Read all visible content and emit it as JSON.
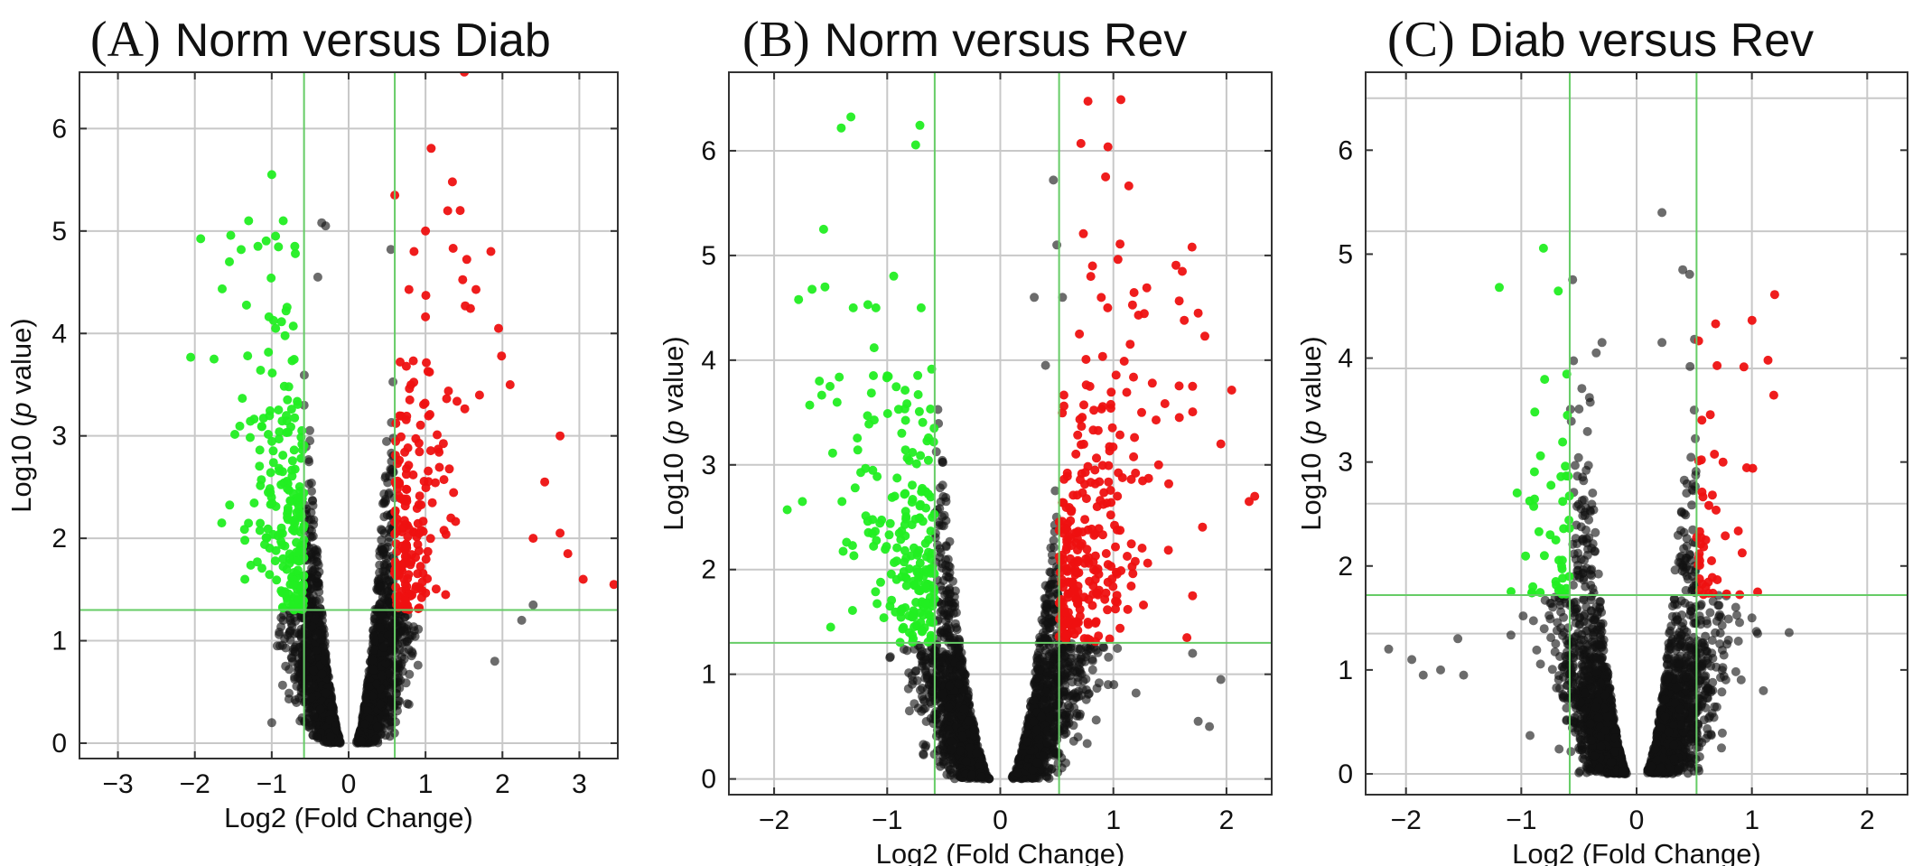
{
  "chart_data": [
    {
      "type": "scatter",
      "panel_letter": "(A)",
      "title": "Norm versus Diab",
      "xlabel": "Log2 (Fold Change)",
      "ylabel_prefix": "Log10 (",
      "ylabel_italic": "p",
      "ylabel_suffix": " value)",
      "xlim": [
        -3.5,
        3.5
      ],
      "ylim": [
        -0.15,
        6.55
      ],
      "xticks": [
        -3,
        -2,
        -1,
        0,
        1,
        2,
        3
      ],
      "yticks": [
        0,
        1,
        2,
        3,
        4,
        5,
        6
      ],
      "extra_hgrid": [],
      "fc_threshold": [
        -0.58,
        0.6
      ],
      "p_threshold": 1.3,
      "grid": true,
      "colors": {
        "up": "#ee1111",
        "down": "#22ee22",
        "ns": "#111111"
      },
      "highlight_points": {
        "down": [
          [
            -1.0,
            5.55
          ],
          [
            -1.3,
            5.1
          ],
          [
            -1.55,
            4.7
          ],
          [
            -1.75,
            3.75
          ],
          [
            -1.65,
            2.15
          ],
          [
            -1.35,
            1.6
          ],
          [
            -0.7,
            4.85
          ],
          [
            -0.85,
            5.1
          ],
          [
            -0.95,
            4.95
          ]
        ],
        "up": [
          [
            1.35,
            5.48
          ],
          [
            0.6,
            5.35
          ],
          [
            1.45,
            5.2
          ],
          [
            1.85,
            4.8
          ],
          [
            1.95,
            4.05
          ],
          [
            2.1,
            3.5
          ],
          [
            2.75,
            3.0
          ],
          [
            2.55,
            2.55
          ],
          [
            2.75,
            2.05
          ],
          [
            3.05,
            1.6
          ],
          [
            3.45,
            1.55
          ],
          [
            1.0,
            5.0
          ],
          [
            0.85,
            4.8
          ],
          [
            2.4,
            2.0
          ],
          [
            2.85,
            1.85
          ]
        ],
        "ns": [
          [
            -0.3,
            5.05
          ],
          [
            -0.35,
            5.08
          ],
          [
            0.55,
            4.82
          ],
          [
            -0.4,
            4.55
          ],
          [
            1.9,
            0.8
          ],
          [
            2.25,
            1.2
          ],
          [
            2.4,
            1.35
          ],
          [
            -1.0,
            0.2
          ],
          [
            -0.4,
            0.05
          ]
        ]
      }
    },
    {
      "type": "scatter",
      "panel_letter": "(B)",
      "title": "Norm versus Rev",
      "xlabel": "Log2 (Fold Change)",
      "ylabel_prefix": "Log10 (",
      "ylabel_italic": "p",
      "ylabel_suffix": " value)",
      "xlim": [
        -2.4,
        2.4
      ],
      "ylim": [
        -0.15,
        6.75
      ],
      "xticks": [
        -2,
        -1,
        0,
        1,
        2
      ],
      "yticks": [
        0,
        1,
        2,
        3,
        4,
        5,
        6
      ],
      "extra_hgrid": [],
      "fc_threshold": [
        -0.58,
        0.52
      ],
      "p_threshold": 1.3,
      "grid": true,
      "colors": {
        "up": "#ee1111",
        "down": "#22ee22",
        "ns": "#111111"
      },
      "highlight_points": {
        "down": [
          [
            -1.55,
            4.7
          ],
          [
            -1.3,
            4.5
          ],
          [
            -1.1,
            4.5
          ],
          [
            -0.7,
            4.5
          ],
          [
            -1.6,
            3.8
          ],
          [
            -1.75,
            2.65
          ],
          [
            -1.4,
            2.65
          ],
          [
            -1.0,
            3.85
          ],
          [
            -1.5,
            1.45
          ]
        ],
        "up": [
          [
            0.8,
            4.8
          ],
          [
            0.95,
            4.5
          ],
          [
            0.7,
            4.25
          ],
          [
            1.75,
            4.45
          ],
          [
            1.7,
            3.75
          ],
          [
            1.95,
            3.2
          ],
          [
            2.2,
            2.65
          ],
          [
            2.25,
            2.7
          ],
          [
            1.7,
            1.75
          ],
          [
            1.65,
            1.35
          ],
          [
            1.4,
            3.0
          ],
          [
            1.25,
            3.5
          ]
        ],
        "ns": [
          [
            0.47,
            5.72
          ],
          [
            0.5,
            5.1
          ],
          [
            0.55,
            4.6
          ],
          [
            0.3,
            4.6
          ],
          [
            0.4,
            3.95
          ],
          [
            1.7,
            1.2
          ],
          [
            1.95,
            0.95
          ],
          [
            1.75,
            0.55
          ],
          [
            1.85,
            0.5
          ]
        ]
      }
    },
    {
      "type": "scatter",
      "panel_letter": "(C)",
      "title": "Diab versus Rev",
      "xlabel": "Log2 (Fold Change)",
      "ylabel_prefix": "Log10 (",
      "ylabel_italic": "p",
      "ylabel_suffix": " value)",
      "xlim": [
        -2.35,
        2.35
      ],
      "ylim": [
        -0.2,
        6.75
      ],
      "xticks": [
        -2,
        -1,
        0,
        1,
        2
      ],
      "yticks": [
        0,
        1,
        2,
        3,
        4,
        5,
        6
      ],
      "extra_hgrid": [
        1.35,
        2.6,
        3.9,
        5.22,
        6.5
      ],
      "fc_threshold": [
        -0.58,
        0.52
      ],
      "p_threshold": 1.72,
      "grid": true,
      "colors": {
        "up": "#ee1111",
        "down": "#22ee22",
        "ns": "#111111"
      },
      "highlight_points": {
        "down": [
          [
            -0.6,
            3.45
          ],
          [
            -0.75,
            2.3
          ],
          [
            -0.7,
            2.25
          ],
          [
            -0.8,
            2.1
          ],
          [
            -0.65,
            2.0
          ],
          [
            -0.7,
            1.85
          ],
          [
            -0.9,
            1.8
          ]
        ],
        "up": [
          [
            0.75,
            3.0
          ],
          [
            0.6,
            2.25
          ],
          [
            0.65,
            2.05
          ],
          [
            0.6,
            1.8
          ],
          [
            1.05,
            1.75
          ]
        ],
        "ns": [
          [
            0.22,
            5.4
          ],
          [
            0.4,
            4.85
          ],
          [
            0.22,
            4.15
          ],
          [
            -0.3,
            4.15
          ],
          [
            -0.35,
            4.05
          ],
          [
            0.5,
            3.5
          ],
          [
            -2.15,
            1.2
          ],
          [
            -1.95,
            1.1
          ],
          [
            -1.85,
            0.95
          ],
          [
            -1.7,
            1.0
          ],
          [
            -1.5,
            0.95
          ],
          [
            -1.55,
            1.3
          ],
          [
            1.0,
            1.5
          ],
          [
            1.05,
            1.35
          ],
          [
            1.1,
            0.8
          ]
        ]
      }
    }
  ]
}
